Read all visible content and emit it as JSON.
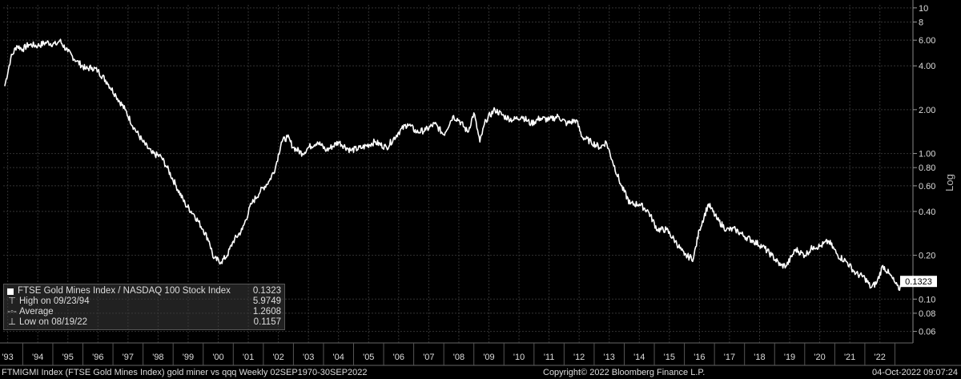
{
  "chart_data": {
    "type": "line",
    "y_scale": "log",
    "y_ticks": [
      10,
      8,
      6,
      4,
      2,
      1,
      0.8,
      0.6,
      0.4,
      0.2,
      0.1,
      0.08,
      0.06
    ],
    "y_tick_labels": [
      "10",
      "8",
      "6.00",
      "4.00",
      "2.00",
      "1.00",
      "0.80",
      "0.60",
      "0.40",
      "0.20",
      "0.10",
      "0.08",
      "0.06"
    ],
    "ylim": [
      0.05,
      10.5
    ],
    "ylabel": "Log",
    "x_tick_labels": [
      "'93",
      "'94",
      "'95",
      "'96",
      "'97",
      "'98",
      "'99",
      "'00",
      "'01",
      "'02",
      "'03",
      "'04",
      "'05",
      "'06",
      "'07",
      "'08",
      "'09",
      "'10",
      "'11",
      "'12",
      "'13",
      "'14",
      "'15",
      "'16",
      "'17",
      "'18",
      "'19",
      "'20",
      "'21",
      "'22"
    ],
    "x_tick_years": [
      1993,
      1994,
      1995,
      1996,
      1997,
      1998,
      1999,
      2000,
      2001,
      2002,
      2003,
      2004,
      2005,
      2006,
      2007,
      2008,
      2009,
      2010,
      2011,
      2012,
      2013,
      2014,
      2015,
      2016,
      2017,
      2018,
      2019,
      2020,
      2021,
      2022
    ],
    "xlim": [
      1992.85,
      2023.1
    ],
    "grid": true,
    "series": [
      {
        "name": "FTSE Gold Mines Index / NASDAQ 100 Stock Index",
        "color": "#ffffff",
        "x": [
          1992.9,
          1993.1,
          1993.3,
          1993.5,
          1993.7,
          1994.0,
          1994.3,
          1994.6,
          1994.73,
          1995.0,
          1995.3,
          1995.6,
          1995.8,
          1996.0,
          1996.3,
          1996.6,
          1996.9,
          1997.2,
          1997.5,
          1997.8,
          1998.1,
          1998.3,
          1998.6,
          1998.9,
          1999.2,
          1999.5,
          1999.7,
          1999.85,
          2000.1,
          2000.3,
          2000.5,
          2000.8,
          2001.1,
          2001.4,
          2001.7,
          2001.9,
          2002.1,
          2002.3,
          2002.5,
          2002.8,
          2003.0,
          2003.3,
          2003.6,
          2004.0,
          2004.4,
          2004.8,
          2005.2,
          2005.6,
          2006.0,
          2006.3,
          2006.6,
          2006.9,
          2007.2,
          2007.5,
          2007.8,
          2008.0,
          2008.3,
          2008.5,
          2008.7,
          2008.9,
          2009.2,
          2009.5,
          2009.8,
          2010.1,
          2010.4,
          2010.7,
          2011.0,
          2011.3,
          2011.6,
          2011.9,
          2012.1,
          2012.4,
          2012.7,
          2012.9,
          2013.1,
          2013.4,
          2013.7,
          2014.0,
          2014.3,
          2014.6,
          2014.9,
          2015.2,
          2015.5,
          2015.8,
          2016.0,
          2016.3,
          2016.6,
          2016.9,
          2017.2,
          2017.5,
          2017.8,
          2018.1,
          2018.4,
          2018.7,
          2018.9,
          2019.2,
          2019.5,
          2019.8,
          2020.0,
          2020.3,
          2020.6,
          2020.9,
          2021.2,
          2021.5,
          2021.7,
          2021.9,
          2022.1,
          2022.3,
          2022.5,
          2022.63,
          2022.75
        ],
        "y": [
          2.9,
          4.5,
          5.5,
          5.2,
          5.6,
          5.5,
          5.8,
          5.6,
          5.97,
          5.0,
          4.3,
          3.8,
          3.9,
          3.7,
          3.1,
          2.5,
          2.0,
          1.5,
          1.2,
          1.0,
          0.95,
          0.8,
          0.6,
          0.45,
          0.38,
          0.3,
          0.25,
          0.19,
          0.18,
          0.2,
          0.25,
          0.3,
          0.45,
          0.55,
          0.65,
          0.8,
          1.2,
          1.3,
          1.1,
          1.0,
          1.1,
          1.2,
          1.05,
          1.2,
          1.05,
          1.1,
          1.2,
          1.1,
          1.4,
          1.6,
          1.4,
          1.45,
          1.6,
          1.35,
          1.8,
          1.7,
          1.4,
          1.9,
          1.2,
          1.7,
          2.0,
          1.8,
          1.7,
          1.8,
          1.6,
          1.75,
          1.7,
          1.8,
          1.6,
          1.7,
          1.3,
          1.2,
          1.1,
          1.2,
          0.9,
          0.6,
          0.45,
          0.45,
          0.4,
          0.3,
          0.3,
          0.25,
          0.2,
          0.19,
          0.3,
          0.45,
          0.35,
          0.3,
          0.3,
          0.27,
          0.25,
          0.23,
          0.2,
          0.17,
          0.17,
          0.22,
          0.2,
          0.23,
          0.23,
          0.25,
          0.2,
          0.18,
          0.15,
          0.14,
          0.12,
          0.13,
          0.17,
          0.15,
          0.13,
          0.1157,
          0.1323
        ]
      }
    ],
    "last_value_label": "0.1323",
    "last_value": 0.1323,
    "legend": {
      "title": "FTSE Gold Mines Index / NASDAQ 100 Stock Index",
      "title_value": "0.1323",
      "rows": [
        {
          "label": "High on 09/23/94",
          "value": "5.9749"
        },
        {
          "label": "Average",
          "value": "1.2608"
        },
        {
          "label": "Low on 08/19/22",
          "value": "0.1157"
        }
      ]
    }
  },
  "footer": {
    "left": "FTMIGMI Index (FTSE Gold Mines Index) gold miner vs qqq  Weekly 02SEP1970-30SEP2022",
    "center": "Copyright© 2022 Bloomberg Finance L.P.",
    "right": "04-Oct-2022 09:07:24"
  }
}
